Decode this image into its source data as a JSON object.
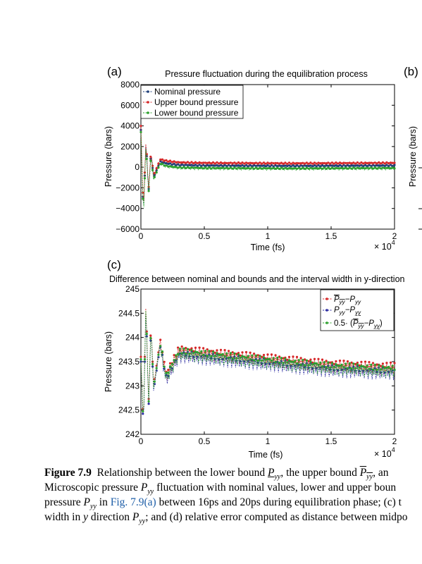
{
  "panel_a": {
    "label": "(a)",
    "label_right": "(b)",
    "title": "Pressure fluctuation during the equilibration process",
    "ylabel": "Pressure (bars)",
    "ylabel_right": "Pressure (bars)",
    "xlabel": "Time (fs)",
    "exponent_prefix": "× 10",
    "exponent_sup": "4",
    "yticks": [
      "8000",
      "6000",
      "4000",
      "2000",
      "0",
      "−2000",
      "−4000",
      "−6000"
    ],
    "xticks": [
      "0",
      "0.5",
      "1",
      "1.5",
      "2"
    ],
    "legend": [
      "Nominal pressure",
      "Upper bound pressure",
      "Lower bound pressure"
    ]
  },
  "panel_c": {
    "label": "(c)",
    "title": "Difference between nominal and bounds and the interval width in y-direction",
    "ylabel": "Pressure (bars)",
    "xlabel": "Time (fs)",
    "exponent_prefix": "× 10",
    "exponent_sup": "4",
    "yticks": [
      "245",
      "244.5",
      "244",
      "243.5",
      "243",
      "242.5",
      "242"
    ],
    "xticks": [
      "0",
      "0.5",
      "1",
      "1.5",
      "2"
    ],
    "legend_sub": "yy",
    "legend_half": "0.5· ("
  },
  "caption": {
    "fig_label": "Figure 7.9",
    "l1_a": "Relationship between the lower bound ",
    "l1_b": ", the upper bound ",
    "l1_c": ", an",
    "l2_a": "Microscopic pressure ",
    "l2_b": " fluctuation with nominal values, lower and upper boun",
    "l3_a": "pressure ",
    "l3_link": "Fig. 7.9(a)",
    "l3_b": " between 16ps and 20ps during equilibration phase; (c) t",
    "l4_a": "width in ",
    "l4_b": " direction ",
    "l4_c": "; and (d) relative error computed as distance between midpo",
    "sym_P": "P",
    "sym_sub": "yy",
    "sym_y": "y"
  },
  "chart_data": [
    {
      "type": "line",
      "title": "Pressure fluctuation during the equilibration process",
      "xlabel": "Time (fs)",
      "ylabel": "Pressure (bars)",
      "xlim": [
        0,
        20000
      ],
      "ylim": [
        -6000,
        8000
      ],
      "grid": false,
      "legend_placement": "top-left",
      "series": [
        {
          "name": "Nominal pressure",
          "color": "#1f3f7a",
          "x": [
            0,
            200,
            400,
            600,
            800,
            1000,
            1500,
            2000,
            3000,
            5000,
            8000,
            12000,
            16000,
            20000
          ],
          "y": [
            3600,
            -4800,
            2600,
            -2400,
            1400,
            -1000,
            500,
            300,
            150,
            100,
            80,
            60,
            80,
            100
          ]
        },
        {
          "name": "Upper bound pressure",
          "color": "#d62728",
          "x": [
            0,
            200,
            400,
            600,
            800,
            1000,
            1500,
            2000,
            3000,
            5000,
            8000,
            12000,
            16000,
            20000
          ],
          "y": [
            4000,
            -4400,
            2800,
            -2200,
            1600,
            -800,
            700,
            550,
            400,
            350,
            330,
            310,
            330,
            350
          ]
        },
        {
          "name": "Lower bound pressure",
          "color": "#2ca02c",
          "x": [
            0,
            200,
            400,
            600,
            800,
            1000,
            1500,
            2000,
            3000,
            5000,
            8000,
            12000,
            16000,
            20000
          ],
          "y": [
            3400,
            -5000,
            2300,
            -2600,
            1200,
            -1200,
            300,
            50,
            -100,
            -150,
            -170,
            -190,
            -170,
            -150
          ]
        }
      ]
    },
    {
      "type": "line",
      "title": "Difference between nominal and bounds and the interval width in y-direction",
      "xlabel": "Time (fs)",
      "ylabel": "Pressure (bars)",
      "xlim": [
        0,
        20000
      ],
      "ylim": [
        242,
        245
      ],
      "grid": false,
      "legend_placement": "top-right",
      "series": [
        {
          "color": "#d62728",
          "x": [
            0,
            200,
            400,
            600,
            800,
            1000,
            1500,
            2000,
            3000,
            5000,
            7000,
            9000,
            11000,
            13000,
            15000,
            17000,
            19000,
            20000
          ],
          "y": [
            243.6,
            242.2,
            244.8,
            242.6,
            244.3,
            243.0,
            243.9,
            243.2,
            243.7,
            243.65,
            243.6,
            243.55,
            243.5,
            243.45,
            243.4,
            243.38,
            243.35,
            243.35
          ]
        },
        {
          "color": "#2a2aa0",
          "x": [
            0,
            200,
            400,
            600,
            800,
            1000,
            1500,
            2000,
            3000,
            5000,
            7000,
            9000,
            11000,
            13000,
            15000,
            17000,
            19000,
            20000
          ],
          "y": [
            243.5,
            242.1,
            244.7,
            242.5,
            244.2,
            242.9,
            243.8,
            243.1,
            243.6,
            243.55,
            243.5,
            243.45,
            243.4,
            243.35,
            243.3,
            243.28,
            243.25,
            243.25
          ]
        },
        {
          "color": "#2ca02c",
          "x": [
            0,
            200,
            400,
            600,
            800,
            1000,
            1500,
            2000,
            3000,
            5000,
            7000,
            9000,
            11000,
            13000,
            15000,
            17000,
            19000,
            20000
          ],
          "y": [
            243.55,
            242.15,
            244.75,
            242.55,
            244.25,
            242.95,
            243.85,
            243.15,
            243.65,
            243.6,
            243.55,
            243.5,
            243.45,
            243.4,
            243.35,
            243.33,
            243.3,
            243.3
          ]
        }
      ]
    }
  ]
}
